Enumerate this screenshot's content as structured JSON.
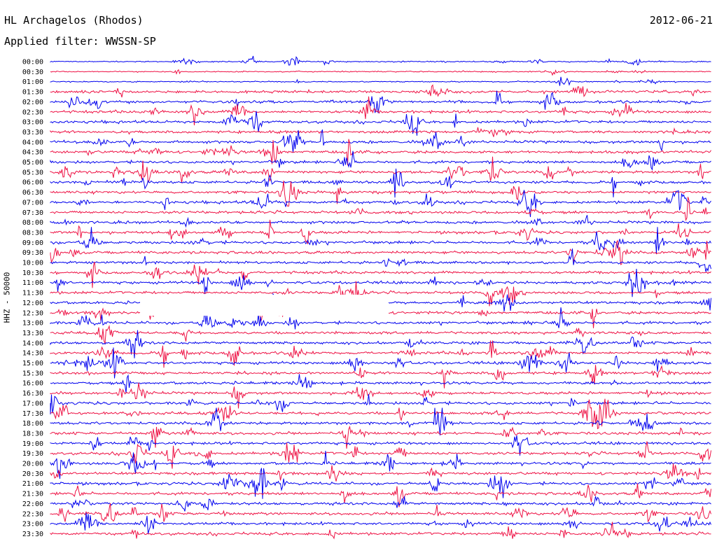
{
  "header": {
    "station": "HL Archagelos (Rhodos)",
    "filter": "Applied filter: WWSSN-SP",
    "date": "2012-06-21"
  },
  "chart_data": {
    "type": "line",
    "ylabel": "HHZ - 50000",
    "row_labels": [
      "00:00",
      "00:30",
      "01:00",
      "01:30",
      "02:00",
      "02:30",
      "03:00",
      "03:30",
      "04:00",
      "04:30",
      "05:00",
      "05:30",
      "06:00",
      "06:30",
      "07:00",
      "07:30",
      "08:00",
      "08:30",
      "09:00",
      "09:30",
      "10:00",
      "10:30",
      "11:00",
      "11:30",
      "12:00",
      "12:30",
      "13:00",
      "13:30",
      "14:00",
      "14:30",
      "15:00",
      "15:30",
      "16:00",
      "16:30",
      "17:00",
      "17:30",
      "18:00",
      "18:30",
      "19:00",
      "19:30",
      "20:00",
      "20:30",
      "21:00",
      "21:30",
      "22:00",
      "22:30",
      "23:00",
      "23:30"
    ],
    "series_colors": [
      "#0000ee",
      "#ee1144"
    ],
    "color_pattern": "alternating",
    "grid": false
  }
}
